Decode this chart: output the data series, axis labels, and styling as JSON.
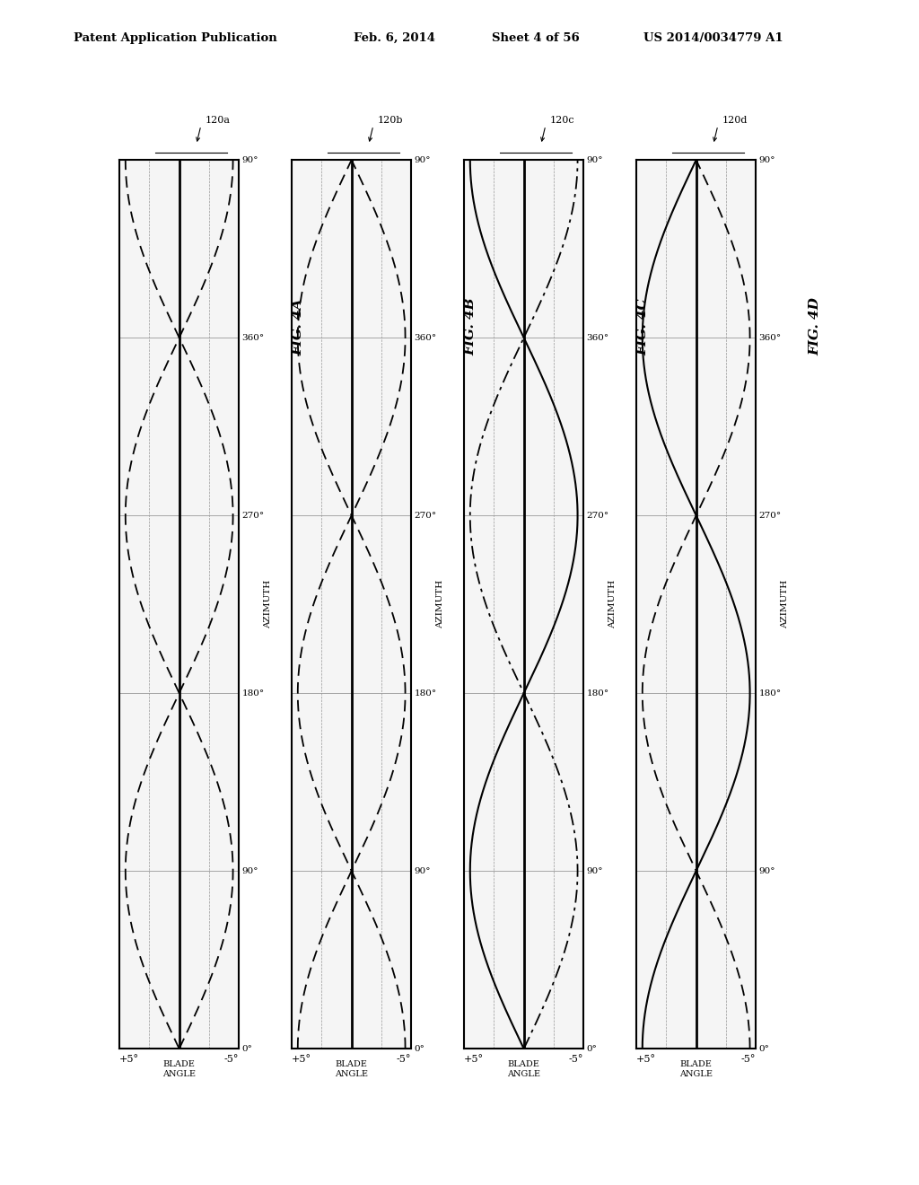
{
  "title_header": "Patent Application Publication",
  "date_header": "Feb. 6, 2014",
  "sheet_header": "Sheet 4 of 56",
  "patent_header": "US 2014/0034779 A1",
  "background_color": "#ffffff",
  "panels": [
    {
      "fig_label": "FIG. 4A",
      "blade_label": "120a",
      "line1_phase": 0.0,
      "line2_phase": 0.5,
      "line1_style": "dashed",
      "line2_style": "dashed"
    },
    {
      "fig_label": "FIG. 4B",
      "blade_label": "120b",
      "line1_phase": 0.25,
      "line2_phase": 0.75,
      "line1_style": "dashed",
      "line2_style": "dashed"
    },
    {
      "fig_label": "FIG. 4C",
      "blade_label": "120c",
      "line1_phase": 0.5,
      "line2_phase": 0.0,
      "line1_style": "solid",
      "line2_style": "dashdot"
    },
    {
      "fig_label": "FIG. 4D",
      "blade_label": "120d",
      "line1_phase": 0.75,
      "line2_phase": 0.25,
      "line1_style": "solid",
      "line2_style": "dashed"
    }
  ],
  "azimuth_ticks": [
    "0°",
    "90°",
    "180°",
    "270°",
    "360°",
    "90°"
  ],
  "azimuth_values": [
    0,
    90,
    180,
    270,
    360,
    450
  ],
  "y_max": 450,
  "amplitude": 4.5,
  "panel_bg": "#f5f5f5"
}
